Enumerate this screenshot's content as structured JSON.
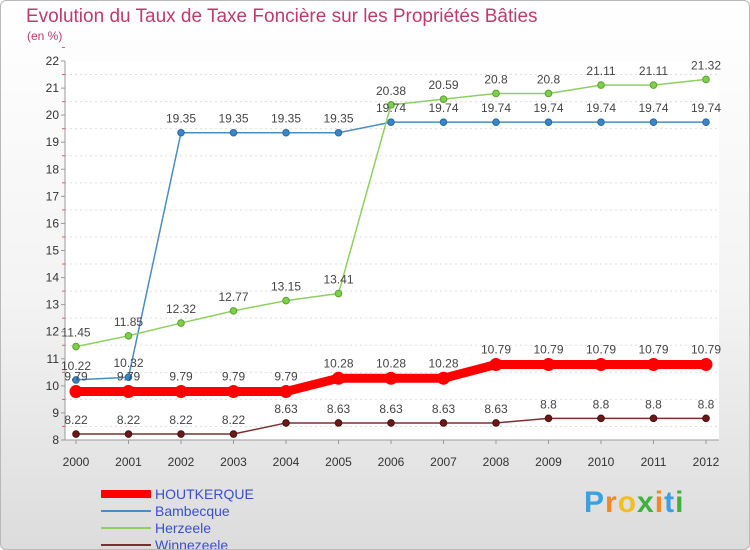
{
  "title": "Evolution du Taux de Taxe Foncière sur les Propriétés Bâties",
  "unit_label": "(en %)",
  "logo": {
    "text": "Proxiti",
    "letters": [
      "P",
      "r",
      "o",
      "x",
      "i",
      "t",
      "i"
    ],
    "colors": [
      "#3aa0e0",
      "#f08a20",
      "#f0c020",
      "#40b040",
      "#f08a20",
      "#3aa0e0",
      "#40b040"
    ]
  },
  "chart_data": {
    "type": "line",
    "title": "Evolution du Taux de Taxe Foncière sur les Propriétés Bâties",
    "ylabel": "(en %)",
    "xlabel": "",
    "ylim": [
      8,
      22
    ],
    "yticks": [
      8,
      9,
      10,
      11,
      12,
      13,
      14,
      15,
      16,
      17,
      18,
      19,
      20,
      21,
      22
    ],
    "categories": [
      "2000",
      "2001",
      "2002",
      "2003",
      "2004",
      "2005",
      "2006",
      "2007",
      "2008",
      "2009",
      "2010",
      "2011",
      "2012"
    ],
    "series": [
      {
        "name": "HOUTKERQUE",
        "color": "#ff0000",
        "values": [
          9.79,
          9.79,
          9.79,
          9.79,
          9.79,
          10.28,
          10.28,
          10.28,
          10.79,
          10.79,
          10.79,
          10.79,
          10.79
        ]
      },
      {
        "name": "Bambecque",
        "color": "#4a8cc4",
        "values": [
          10.22,
          10.32,
          19.35,
          19.35,
          19.35,
          19.35,
          19.74,
          19.74,
          19.74,
          19.74,
          19.74,
          19.74,
          19.74
        ]
      },
      {
        "name": "Herzeele",
        "color": "#8ed060",
        "values": [
          11.45,
          11.85,
          12.32,
          12.77,
          13.15,
          13.41,
          20.38,
          20.59,
          20.8,
          20.8,
          21.11,
          21.11,
          21.32
        ]
      },
      {
        "name": "Winnezeele",
        "color": "#7a3030",
        "values": [
          8.22,
          8.22,
          8.22,
          8.22,
          8.63,
          8.63,
          8.63,
          8.63,
          8.63,
          8.8,
          8.8,
          8.8,
          8.8
        ]
      }
    ]
  }
}
